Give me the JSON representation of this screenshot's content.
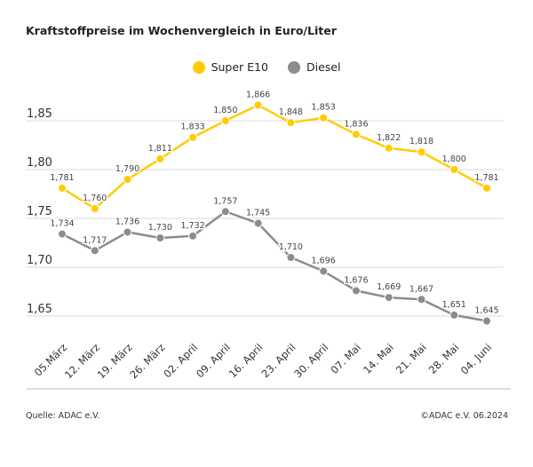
{
  "chart_data": {
    "type": "line",
    "title": "Kraftstoffpreise im Wochenvergleich in Euro/Liter",
    "categories": [
      "05.März",
      "12. März",
      "19. März",
      "26. März",
      "02. April",
      "09. April",
      "16. April",
      "23. April",
      "30. April",
      "07. Mai",
      "14. Mai",
      "21. Mai",
      "28. Mai",
      "04. Juni"
    ],
    "series": [
      {
        "name": "Super E10",
        "color": "#ffcc00",
        "values": [
          1.781,
          1.76,
          1.79,
          1.811,
          1.833,
          1.85,
          1.866,
          1.848,
          1.853,
          1.836,
          1.822,
          1.818,
          1.8,
          1.781
        ],
        "labels": [
          "1,781",
          "1,760",
          "1,790",
          "1,811",
          "1,833",
          "1,850",
          "1,866",
          "1,848",
          "1,853",
          "1,836",
          "1,822",
          "1,818",
          "1,800",
          "1,781"
        ]
      },
      {
        "name": "Diesel",
        "color": "#8c8c8c",
        "values": [
          1.734,
          1.717,
          1.736,
          1.73,
          1.732,
          1.757,
          1.745,
          1.71,
          1.696,
          1.676,
          1.669,
          1.667,
          1.651,
          1.645
        ],
        "labels": [
          "1,734",
          "1,717",
          "1,736",
          "1,730",
          "1,732",
          "1,757",
          "1,745",
          "1,710",
          "1,696",
          "1,676",
          "1,669",
          "1,667",
          "1,651",
          "1,645"
        ]
      }
    ],
    "yticks": [
      1.65,
      1.7,
      1.75,
      1.8,
      1.85
    ],
    "ytick_labels": [
      "1,65",
      "1,70",
      "1,75",
      "1,80",
      "1,85"
    ],
    "ylim": [
      1.65,
      1.85
    ],
    "grid": true,
    "legend_position": "top-center",
    "xlabel": "",
    "ylabel": ""
  },
  "footer": {
    "source": "Quelle: ADAC e.V.",
    "copyright": "©ADAC e.V. 06.2024"
  }
}
